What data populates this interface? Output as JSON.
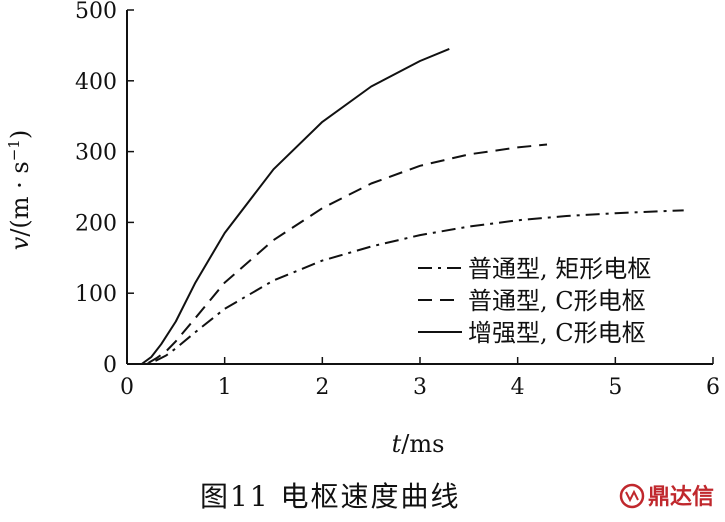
{
  "caption": "图11   电枢速度曲线",
  "watermark": {
    "text": "鼎达信",
    "color": "#c0282d"
  },
  "chart_data": {
    "type": "line",
    "title": "",
    "xlabel_var": "t",
    "xlabel_unit": "/ms",
    "ylabel_var": "v",
    "ylabel_unit": "/(m · s",
    "ylabel_sup": "−1",
    "ylabel_close": ")",
    "xlim": [
      0,
      6
    ],
    "ylim": [
      0,
      500
    ],
    "x_ticks": [
      0,
      1,
      2,
      3,
      4,
      5,
      6
    ],
    "y_ticks": [
      0,
      100,
      200,
      300,
      400,
      500
    ],
    "grid": false,
    "legend_position": "bottom-right",
    "series": [
      {
        "name": "普通型, 矩形电枢",
        "style": "dash-dot",
        "x": [
          0,
          0.2,
          0.3,
          0.4,
          0.5,
          0.7,
          1.0,
          1.5,
          2.0,
          2.5,
          3.0,
          3.5,
          4.0,
          4.5,
          5.0,
          5.5,
          5.7
        ],
        "y": [
          0,
          0,
          5,
          12,
          22,
          45,
          78,
          118,
          146,
          166,
          182,
          194,
          203,
          209,
          213,
          216,
          217
        ]
      },
      {
        "name": "普通型, C形电枢",
        "style": "dashed",
        "x": [
          0,
          0.2,
          0.3,
          0.4,
          0.5,
          0.7,
          1.0,
          1.5,
          2.0,
          2.5,
          3.0,
          3.5,
          4.0,
          4.3
        ],
        "y": [
          0,
          0,
          8,
          18,
          32,
          65,
          115,
          175,
          220,
          255,
          280,
          296,
          306,
          310
        ]
      },
      {
        "name": "增强型, C形电枢",
        "style": "solid",
        "x": [
          0,
          0.15,
          0.25,
          0.35,
          0.5,
          0.7,
          1.0,
          1.5,
          2.0,
          2.5,
          3.0,
          3.3
        ],
        "y": [
          0,
          0,
          10,
          28,
          60,
          115,
          185,
          275,
          342,
          392,
          428,
          445
        ]
      }
    ]
  }
}
